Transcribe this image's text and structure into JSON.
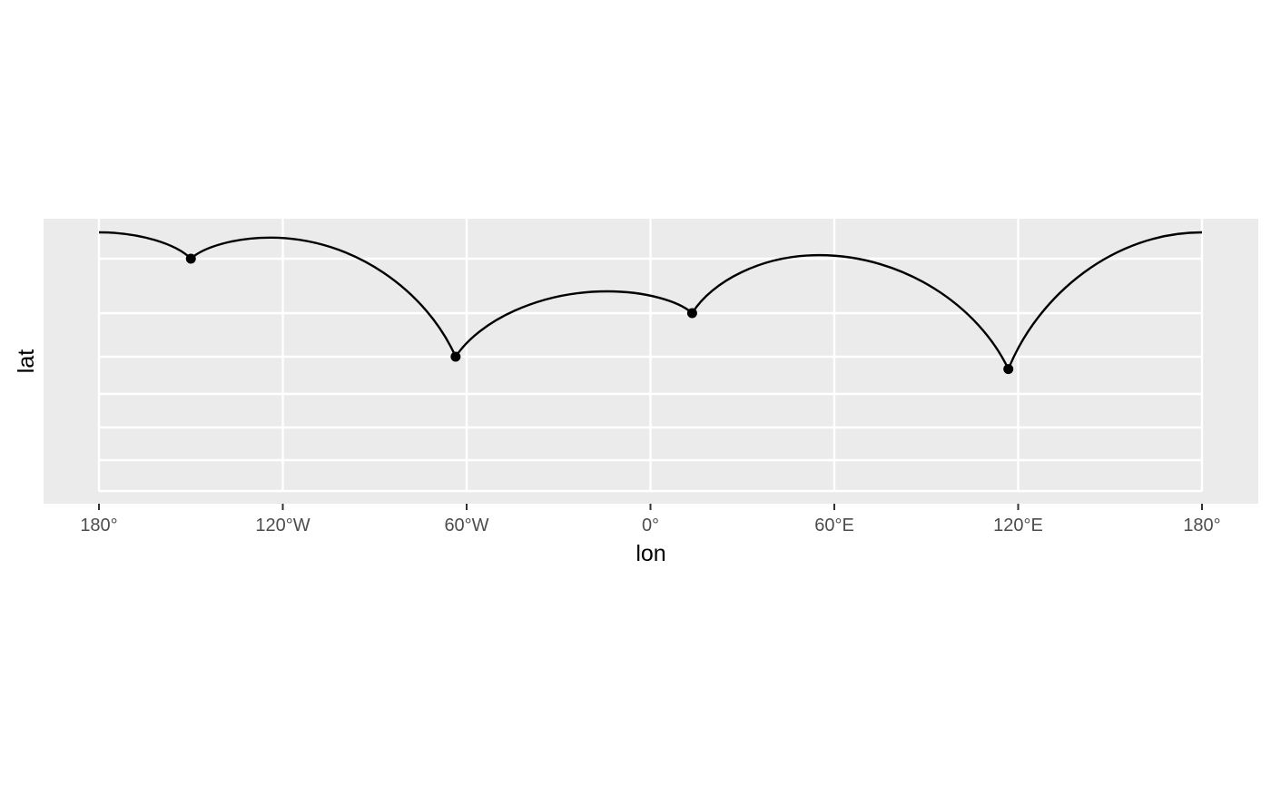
{
  "chart_data": {
    "type": "line",
    "xlabel": "lon",
    "ylabel": "lat",
    "xlim": [
      -180,
      180
    ],
    "x_ticks": [
      {
        "value": -180,
        "label": "180°"
      },
      {
        "value": -120,
        "label": "120°W"
      },
      {
        "value": -60,
        "label": "60°W"
      },
      {
        "value": 0,
        "label": "0°"
      },
      {
        "value": 60,
        "label": "60°E"
      },
      {
        "value": 120,
        "label": "120°E"
      },
      {
        "value": 180,
        "label": "180°"
      }
    ],
    "graticule_lat": [
      90,
      75,
      60,
      45,
      30,
      15,
      0,
      -15,
      -30,
      -45
    ],
    "points": [
      {
        "lon": -150,
        "lat": 75
      },
      {
        "lon": -63.6,
        "lat": 45
      },
      {
        "lon": 13.6,
        "lat": 60
      },
      {
        "lon": 116.8,
        "lat": 40
      }
    ],
    "great_circle_path": [
      {
        "lon": -180,
        "lat": 90
      },
      {
        "lon": -150,
        "lat": 75
      },
      {
        "lon": -124,
        "lat": 87
      },
      {
        "lon": -63.6,
        "lat": 45
      },
      {
        "lon": -14,
        "lat": 66
      },
      {
        "lon": 13.6,
        "lat": 60
      },
      {
        "lon": 55,
        "lat": 77
      },
      {
        "lon": 116.8,
        "lat": 40
      },
      {
        "lon": 180,
        "lat": 90
      }
    ],
    "grid": true,
    "colors": {
      "panel": "#ebebeb",
      "grid": "#ffffff",
      "line": "#000000",
      "point": "#000000"
    }
  }
}
